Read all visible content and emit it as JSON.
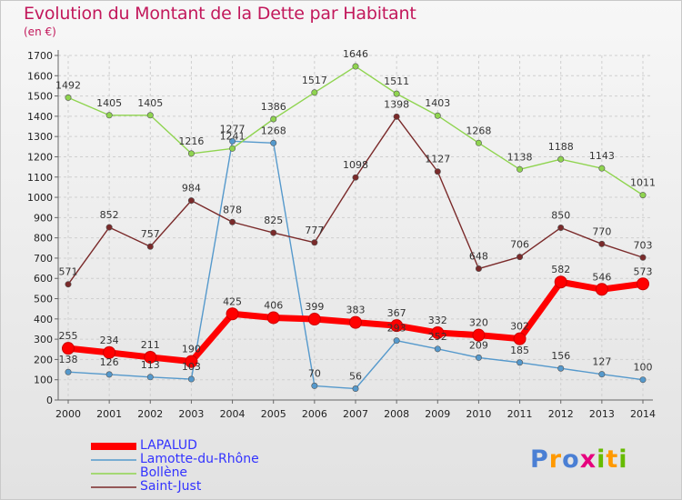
{
  "header": {
    "title": "Evolution du Montant de la Dette par Habitant",
    "unit": "(en €)"
  },
  "logo": {
    "text": "Proxiti",
    "colors": [
      "#4a7fd4",
      "#ff9900",
      "#4a7fd4",
      "#e6007e",
      "#66bb00",
      "#ff9900",
      "#66bb00"
    ]
  },
  "chart_data": {
    "type": "line",
    "x": [
      "2000",
      "2001",
      "2002",
      "2003",
      "2004",
      "2005",
      "2006",
      "2007",
      "2008",
      "2009",
      "2010",
      "2011",
      "2012",
      "2013",
      "2014"
    ],
    "ylim": [
      0,
      1700
    ],
    "yticks": [
      "0",
      "100",
      "200",
      "300",
      "400",
      "500",
      "600",
      "700",
      "800",
      "900",
      "1000",
      "1100",
      "1200",
      "1300",
      "1400",
      "1500",
      "1600",
      "1700"
    ],
    "grid": true,
    "legend_position": "bottom-left",
    "series": [
      {
        "name": "LAPALUD",
        "color": "#ff0000",
        "values": [
          255,
          234,
          211,
          190,
          425,
          406,
          399,
          383,
          367,
          332,
          320,
          302,
          582,
          546,
          573
        ],
        "labels": [
          "255",
          "234",
          "211",
          "190",
          "425",
          "406",
          "399",
          "383",
          "367",
          "332",
          "320",
          "302",
          "582",
          "546",
          "573"
        ]
      },
      {
        "name": "Lamotte-du-Rhône",
        "color": "#5599cc",
        "values": [
          138,
          126,
          113,
          103,
          1277,
          1268,
          70,
          56,
          293,
          252,
          209,
          185,
          156,
          127,
          100
        ],
        "labels": [
          "138",
          "126",
          "113",
          "103",
          "1277",
          "1268",
          "70",
          "56",
          "293",
          "252",
          "209",
          "185",
          "156",
          "127",
          "100"
        ]
      },
      {
        "name": "Bollène",
        "color": "#8fd44f",
        "values": [
          1492,
          1405,
          1405,
          1216,
          1241,
          1386,
          1517,
          1646,
          1511,
          1403,
          1268,
          1138,
          1188,
          1143,
          1011
        ],
        "labels": [
          "1492",
          "1405",
          "1405",
          "1216",
          "1241",
          "1386",
          "1517",
          "1646",
          "1511",
          "1403",
          "1268",
          "1138",
          "1188",
          "1143",
          "1011"
        ]
      },
      {
        "name": "Saint-Just",
        "color": "#7a2a2a",
        "values": [
          571,
          852,
          757,
          984,
          878,
          825,
          777,
          1098,
          1398,
          1127,
          648,
          706,
          850,
          770,
          703
        ],
        "labels": [
          "571",
          "852",
          "757",
          "984",
          "878",
          "825",
          "777",
          "1098",
          "1398",
          "1127",
          "648",
          "706",
          "850",
          "770",
          "703"
        ]
      }
    ]
  }
}
